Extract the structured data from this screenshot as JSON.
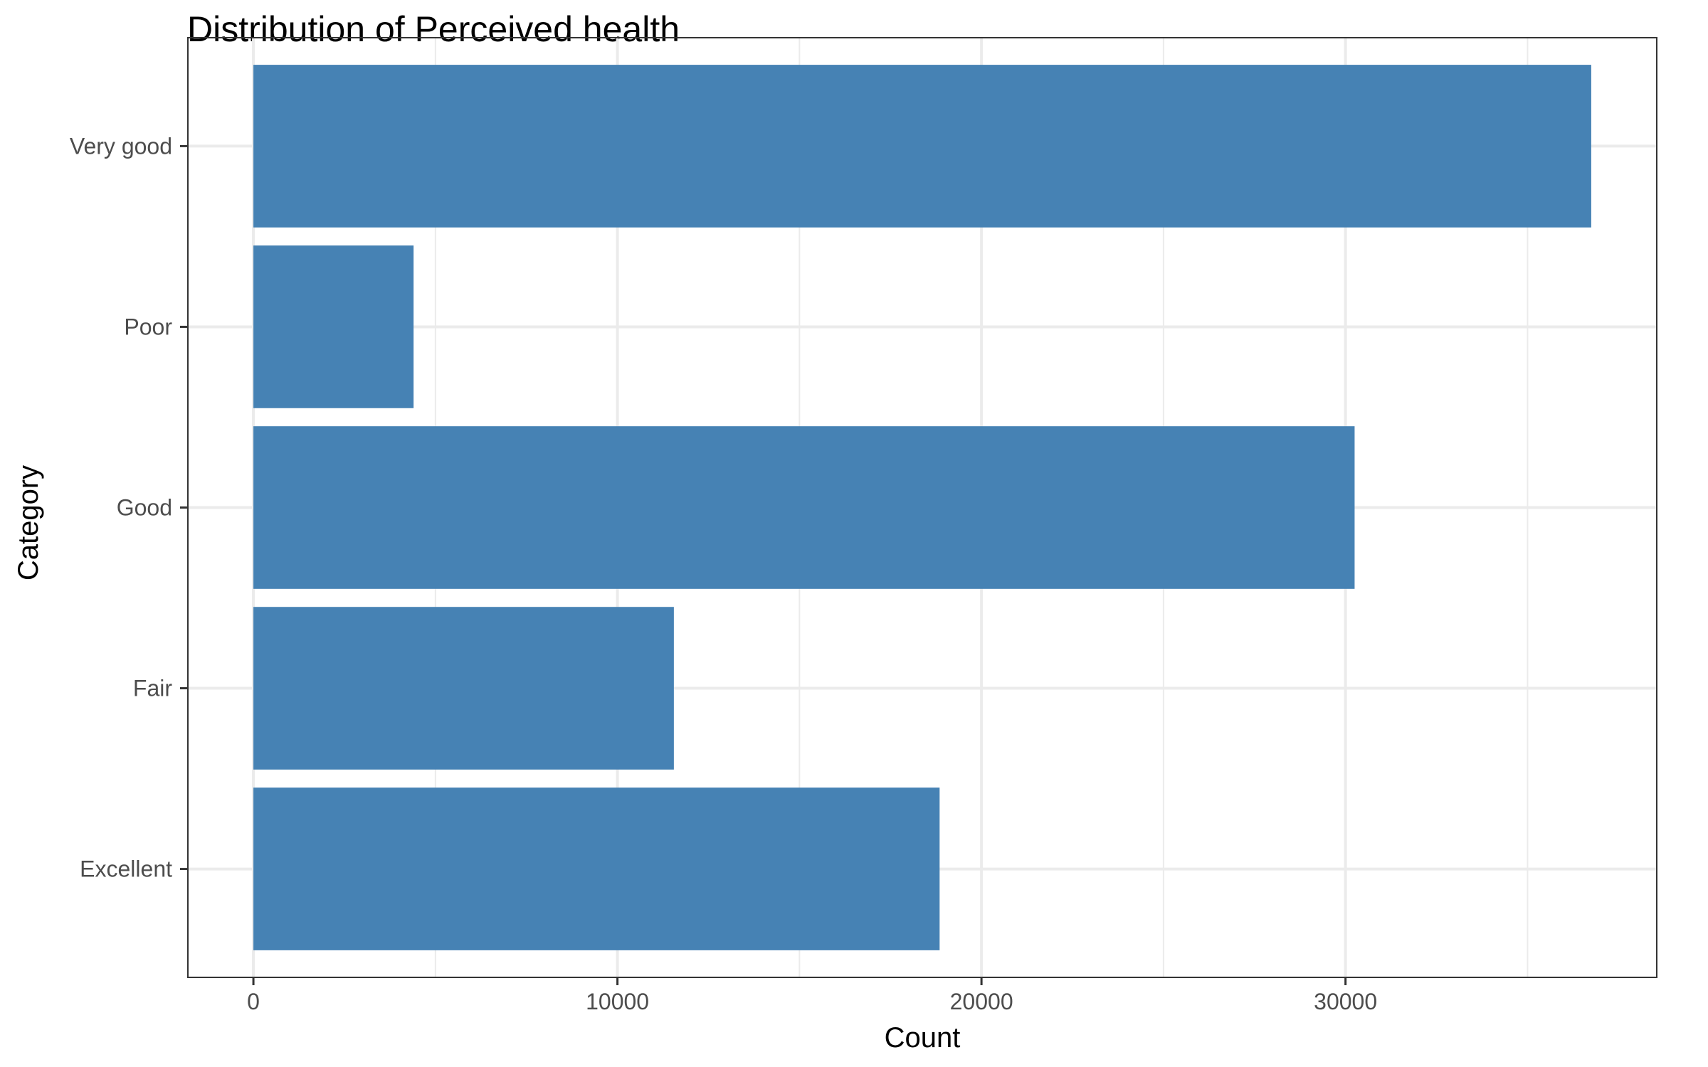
{
  "chart_data": {
    "type": "bar",
    "orientation": "horizontal",
    "title": "Distribution of Perceived health",
    "xlabel": "Count",
    "ylabel": "Category",
    "categories": [
      "Excellent",
      "Fair",
      "Good",
      "Poor",
      "Very good"
    ],
    "values": [
      18850,
      11550,
      30250,
      4400,
      36750
    ],
    "xlim": [
      -1800,
      38550
    ],
    "x_ticks": [
      0,
      10000,
      20000,
      30000
    ],
    "x_tick_labels": [
      "0",
      "10000",
      "20000",
      "30000"
    ],
    "grid": true,
    "legend": "none",
    "bar_color": "#4682b4"
  }
}
